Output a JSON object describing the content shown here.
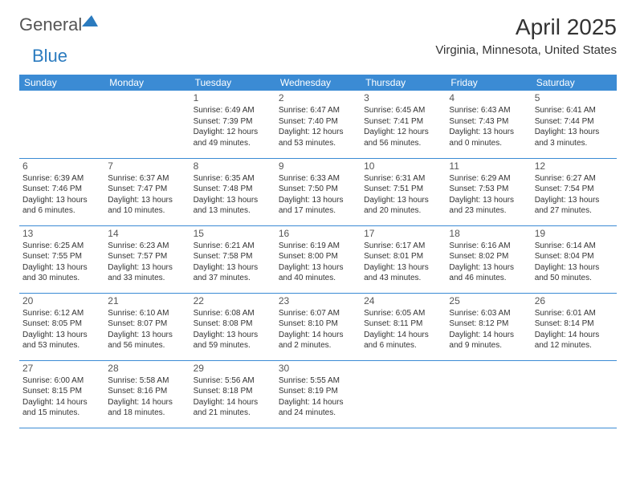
{
  "brand": {
    "part1": "General",
    "part2": "Blue"
  },
  "title": "April 2025",
  "location": "Virginia, Minnesota, United States",
  "colors": {
    "header_bg": "#3b8bd4",
    "header_text": "#ffffff",
    "border": "#3b8bd4",
    "brand_blue": "#2b7bbf",
    "brand_gray": "#555555"
  },
  "weekdays": [
    "Sunday",
    "Monday",
    "Tuesday",
    "Wednesday",
    "Thursday",
    "Friday",
    "Saturday"
  ],
  "weeks": [
    [
      null,
      null,
      {
        "d": "1",
        "sr": "6:49 AM",
        "ss": "7:39 PM",
        "dl": "12 hours and 49 minutes."
      },
      {
        "d": "2",
        "sr": "6:47 AM",
        "ss": "7:40 PM",
        "dl": "12 hours and 53 minutes."
      },
      {
        "d": "3",
        "sr": "6:45 AM",
        "ss": "7:41 PM",
        "dl": "12 hours and 56 minutes."
      },
      {
        "d": "4",
        "sr": "6:43 AM",
        "ss": "7:43 PM",
        "dl": "13 hours and 0 minutes."
      },
      {
        "d": "5",
        "sr": "6:41 AM",
        "ss": "7:44 PM",
        "dl": "13 hours and 3 minutes."
      }
    ],
    [
      {
        "d": "6",
        "sr": "6:39 AM",
        "ss": "7:46 PM",
        "dl": "13 hours and 6 minutes."
      },
      {
        "d": "7",
        "sr": "6:37 AM",
        "ss": "7:47 PM",
        "dl": "13 hours and 10 minutes."
      },
      {
        "d": "8",
        "sr": "6:35 AM",
        "ss": "7:48 PM",
        "dl": "13 hours and 13 minutes."
      },
      {
        "d": "9",
        "sr": "6:33 AM",
        "ss": "7:50 PM",
        "dl": "13 hours and 17 minutes."
      },
      {
        "d": "10",
        "sr": "6:31 AM",
        "ss": "7:51 PM",
        "dl": "13 hours and 20 minutes."
      },
      {
        "d": "11",
        "sr": "6:29 AM",
        "ss": "7:53 PM",
        "dl": "13 hours and 23 minutes."
      },
      {
        "d": "12",
        "sr": "6:27 AM",
        "ss": "7:54 PM",
        "dl": "13 hours and 27 minutes."
      }
    ],
    [
      {
        "d": "13",
        "sr": "6:25 AM",
        "ss": "7:55 PM",
        "dl": "13 hours and 30 minutes."
      },
      {
        "d": "14",
        "sr": "6:23 AM",
        "ss": "7:57 PM",
        "dl": "13 hours and 33 minutes."
      },
      {
        "d": "15",
        "sr": "6:21 AM",
        "ss": "7:58 PM",
        "dl": "13 hours and 37 minutes."
      },
      {
        "d": "16",
        "sr": "6:19 AM",
        "ss": "8:00 PM",
        "dl": "13 hours and 40 minutes."
      },
      {
        "d": "17",
        "sr": "6:17 AM",
        "ss": "8:01 PM",
        "dl": "13 hours and 43 minutes."
      },
      {
        "d": "18",
        "sr": "6:16 AM",
        "ss": "8:02 PM",
        "dl": "13 hours and 46 minutes."
      },
      {
        "d": "19",
        "sr": "6:14 AM",
        "ss": "8:04 PM",
        "dl": "13 hours and 50 minutes."
      }
    ],
    [
      {
        "d": "20",
        "sr": "6:12 AM",
        "ss": "8:05 PM",
        "dl": "13 hours and 53 minutes."
      },
      {
        "d": "21",
        "sr": "6:10 AM",
        "ss": "8:07 PM",
        "dl": "13 hours and 56 minutes."
      },
      {
        "d": "22",
        "sr": "6:08 AM",
        "ss": "8:08 PM",
        "dl": "13 hours and 59 minutes."
      },
      {
        "d": "23",
        "sr": "6:07 AM",
        "ss": "8:10 PM",
        "dl": "14 hours and 2 minutes."
      },
      {
        "d": "24",
        "sr": "6:05 AM",
        "ss": "8:11 PM",
        "dl": "14 hours and 6 minutes."
      },
      {
        "d": "25",
        "sr": "6:03 AM",
        "ss": "8:12 PM",
        "dl": "14 hours and 9 minutes."
      },
      {
        "d": "26",
        "sr": "6:01 AM",
        "ss": "8:14 PM",
        "dl": "14 hours and 12 minutes."
      }
    ],
    [
      {
        "d": "27",
        "sr": "6:00 AM",
        "ss": "8:15 PM",
        "dl": "14 hours and 15 minutes."
      },
      {
        "d": "28",
        "sr": "5:58 AM",
        "ss": "8:16 PM",
        "dl": "14 hours and 18 minutes."
      },
      {
        "d": "29",
        "sr": "5:56 AM",
        "ss": "8:18 PM",
        "dl": "14 hours and 21 minutes."
      },
      {
        "d": "30",
        "sr": "5:55 AM",
        "ss": "8:19 PM",
        "dl": "14 hours and 24 minutes."
      },
      null,
      null,
      null
    ]
  ],
  "labels": {
    "sunrise": "Sunrise:",
    "sunset": "Sunset:",
    "daylight": "Daylight:"
  }
}
